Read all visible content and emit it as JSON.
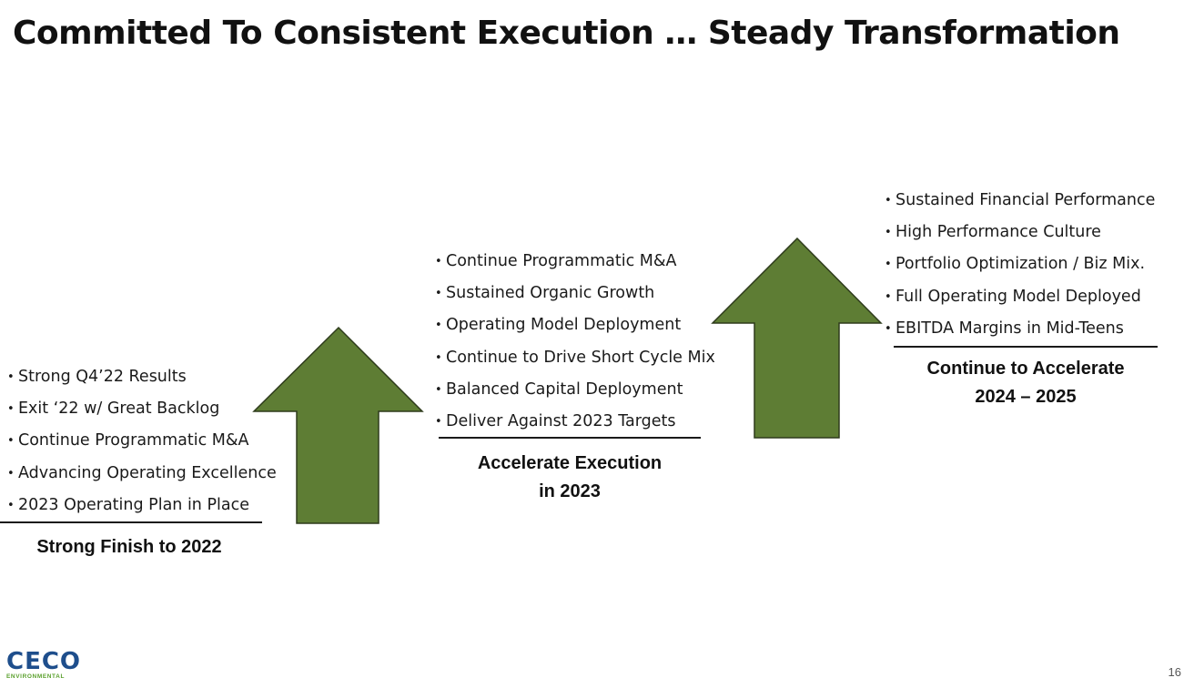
{
  "title": "Committed To Consistent Execution … Steady Transformation",
  "bullet_glyph": "•",
  "stages": [
    {
      "items": [
        "Strong Q4’22 Results",
        "Exit ‘22 w/ Great Backlog",
        "Continue Programmatic M&A",
        "Advancing Operating Excellence",
        "2023 Operating Plan in Place"
      ],
      "caption_line1": "Strong Finish to 2022",
      "caption_line2": ""
    },
    {
      "items": [
        "Continue Programmatic M&A",
        "Sustained Organic Growth",
        "Operating Model Deployment",
        "Continue to Drive Short Cycle Mix",
        "Balanced Capital Deployment",
        "Deliver Against 2023 Targets"
      ],
      "caption_line1": "Accelerate Execution",
      "caption_line2": "in 2023"
    },
    {
      "items": [
        "Sustained Financial Performance",
        "High Performance Culture",
        "Portfolio Optimization / Biz Mix.",
        "Full Operating Model Deployed",
        "EBITDA Margins in Mid-Teens"
      ],
      "caption_line1": "Continue to Accelerate",
      "caption_line2": "2024 – 2025"
    }
  ],
  "colors": {
    "arrow_fill": "#5e7d34",
    "arrow_stroke": "#2e3b1c",
    "logo_blue": "#1e4e8c",
    "logo_green": "#5aa02c"
  },
  "logo": {
    "word": "CECO",
    "sub": "ENVIRONMENTAL"
  },
  "page_number": "16"
}
